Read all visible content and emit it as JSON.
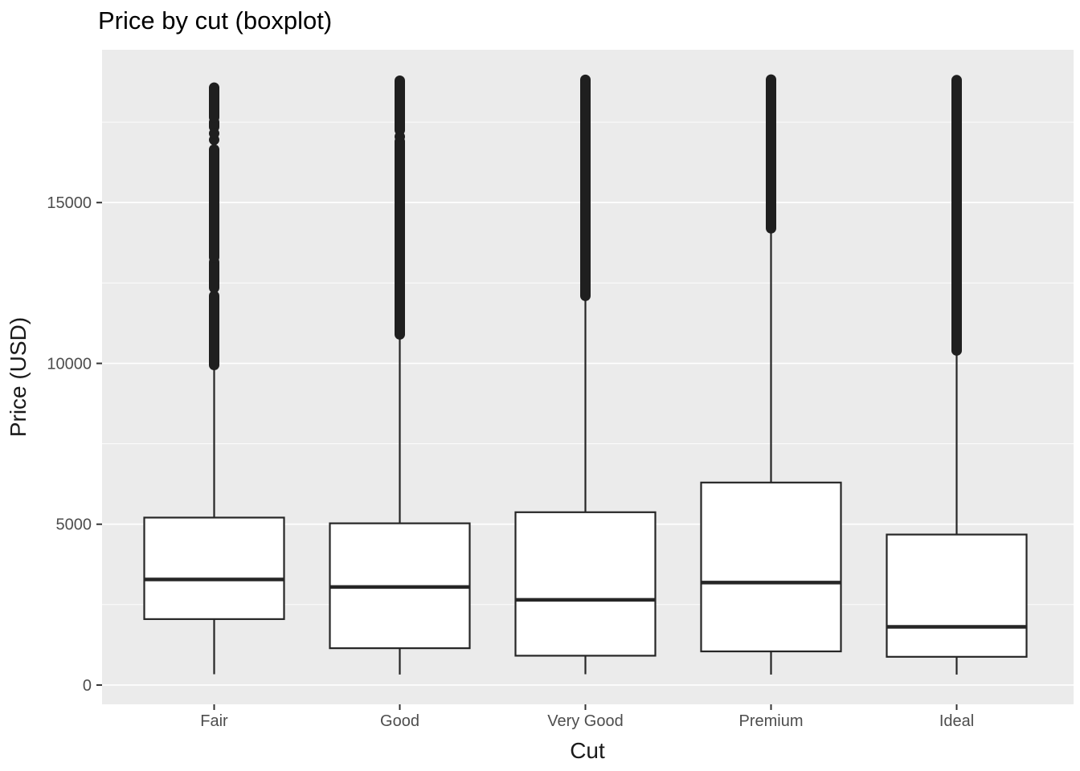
{
  "chart_data": {
    "type": "boxplot",
    "title": "Price by cut (boxplot)",
    "xlabel": "Cut",
    "ylabel": "Price (USD)",
    "categories": [
      "Fair",
      "Good",
      "Very Good",
      "Premium",
      "Ideal"
    ],
    "y_ticks": [
      0,
      5000,
      10000,
      15000
    ],
    "y_minor_ticks": [
      2500,
      7500,
      12500,
      17500
    ],
    "ylim": [
      -600,
      19750
    ],
    "grid": true,
    "legend": "none",
    "boxes": [
      {
        "category": "Fair",
        "whisker_low": 337,
        "q1": 2050,
        "median": 3282,
        "q3": 5206,
        "whisker_high": 9936,
        "outlier_segments": [
          [
            9950,
            12100
          ],
          [
            12350,
            13150
          ],
          [
            13300,
            16650
          ],
          [
            17350,
            17500
          ],
          [
            17650,
            18574
          ]
        ],
        "outlier_points": [
          16950,
          17150
        ]
      },
      {
        "category": "Good",
        "whisker_low": 327,
        "q1": 1145,
        "median": 3050,
        "q3": 5028,
        "whisker_high": 10838,
        "outlier_segments": [
          [
            10900,
            16900
          ],
          [
            17250,
            18788
          ]
        ],
        "outlier_points": [
          17050
        ]
      },
      {
        "category": "Very Good",
        "whisker_low": 336,
        "q1": 912,
        "median": 2648,
        "q3": 5373,
        "whisker_high": 12057,
        "outlier_segments": [
          [
            12100,
            18818
          ]
        ],
        "outlier_points": []
      },
      {
        "category": "Premium",
        "whisker_low": 326,
        "q1": 1046,
        "median": 3185,
        "q3": 6296,
        "whisker_high": 14160,
        "outlier_segments": [
          [
            14200,
            18823
          ]
        ],
        "outlier_points": []
      },
      {
        "category": "Ideal",
        "whisker_low": 326,
        "q1": 878,
        "median": 1810,
        "q3": 4679,
        "whisker_high": 10372,
        "outlier_segments": [
          [
            10400,
            18806
          ]
        ],
        "outlier_points": []
      }
    ],
    "colors": {
      "panel_bg": "#EBEBEB",
      "grid": "#FFFFFF",
      "box_stroke": "#262626",
      "box_fill": "#FFFFFF",
      "outlier": "#1F1F1F",
      "tick_mark": "#333333",
      "tick_label": "#4D4D4D",
      "axis_title": "#1A1A1A",
      "title": "#000000"
    }
  }
}
